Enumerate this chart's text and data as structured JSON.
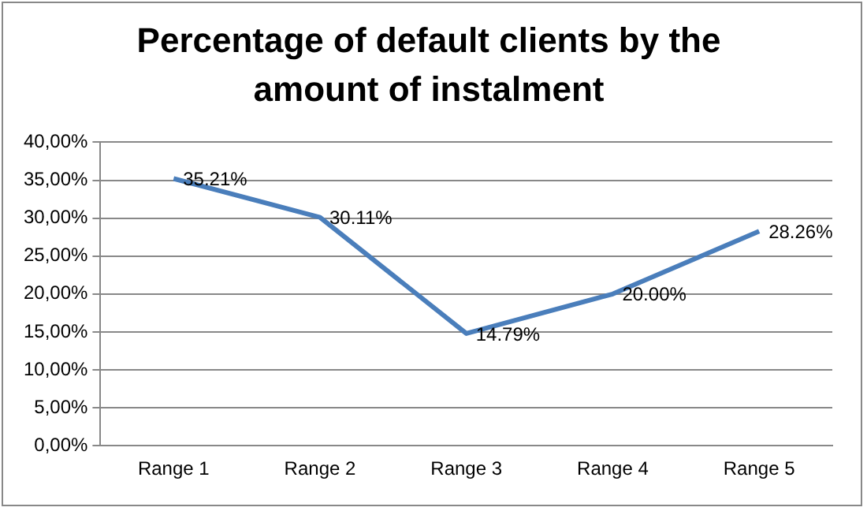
{
  "chart_data": {
    "type": "line",
    "title": "Percentage of default clients by the amount of instalment",
    "categories": [
      "Range 1",
      "Range 2",
      "Range 3",
      "Range 4",
      "Range 5"
    ],
    "series": [
      {
        "color": "#4a7ebb",
        "values": [
          35.21,
          30.11,
          14.79,
          20.0,
          28.26
        ],
        "value_labels": [
          "35.21%",
          "30.11%",
          "14.79%",
          "20.00%",
          "28.26%"
        ]
      }
    ],
    "ylim": [
      0,
      40
    ],
    "yticks": [
      {
        "value": 0,
        "label": "0,00%"
      },
      {
        "value": 5,
        "label": "5,00%"
      },
      {
        "value": 10,
        "label": "10,00%"
      },
      {
        "value": 15,
        "label": "15,00%"
      },
      {
        "value": 20,
        "label": "20,00%"
      },
      {
        "value": 25,
        "label": "25,00%"
      },
      {
        "value": 30,
        "label": "30,00%"
      },
      {
        "value": 35,
        "label": "35,00%"
      },
      {
        "value": 40,
        "label": "40,00%"
      }
    ],
    "grid": "y",
    "marker": "none",
    "line_style": "solid"
  }
}
